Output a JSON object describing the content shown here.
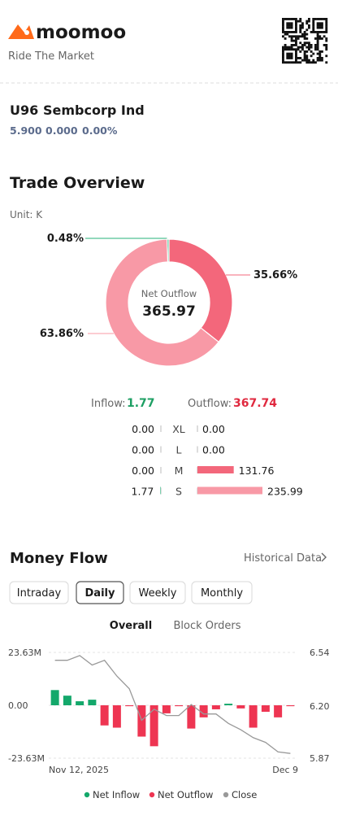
{
  "header": {
    "brand": "moomoo",
    "tagline": "Ride The Market"
  },
  "stock": {
    "symbol": "U96",
    "name": "Sembcorp Ind",
    "price": "5.900",
    "change": "0.000",
    "change_pct": "0.00%"
  },
  "trade_overview": {
    "title": "Trade Overview",
    "unit": "Unit: K",
    "donut": {
      "type": "donut",
      "values": [
        0.48,
        35.66,
        63.86
      ],
      "value_labels": [
        "0.48%",
        "35.66%",
        "63.86%"
      ],
      "colors": [
        "#25b27a",
        "#f3677b",
        "#f899a6"
      ],
      "center_label": "Net Outflow",
      "center_value": 365.97
    },
    "inflow_label": "Inflow:",
    "inflow": 1.77,
    "inflow_color": "#1d9f63",
    "outflow_label": "Outflow:",
    "outflow": 367.74,
    "outflow_color": "#e0293f",
    "rows": [
      {
        "size": "XL",
        "inflow": "0.00",
        "outflow": "0.00"
      },
      {
        "size": "L",
        "inflow": "0.00",
        "outflow": "0.00"
      },
      {
        "size": "M",
        "inflow": "0.00",
        "outflow": 131.76
      },
      {
        "size": "S",
        "inflow": 1.77,
        "outflow": 235.99
      }
    ]
  },
  "money_flow": {
    "title": "Money Flow",
    "link": "Historical Data",
    "tabs": [
      "Intraday",
      "Daily",
      "Weekly",
      "Monthly"
    ],
    "subtabs": [
      "Overall",
      "Block Orders"
    ],
    "chart": {
      "type": "bar",
      "categories": [
        "Nov 12, 2025",
        null,
        null,
        null,
        null,
        null,
        null,
        null,
        null,
        null,
        null,
        null,
        null,
        null,
        null,
        null,
        null,
        null,
        null,
        "Dec 9"
      ],
      "series": [
        {
          "name": "Net Inflow",
          "color": "#14a86b",
          "values": [
            6.8,
            4.3,
            1.8,
            2.5,
            null,
            null,
            null,
            null,
            null,
            null,
            null,
            null,
            null,
            null,
            0.7,
            null,
            null,
            null,
            null,
            null
          ]
        },
        {
          "name": "Net Outflow",
          "color": "#ee3552",
          "values": [
            null,
            null,
            null,
            null,
            -9.0,
            -10.0,
            -0.4,
            -14.0,
            -18.3,
            -3.6,
            -0.4,
            -10.4,
            -5.4,
            -1.8,
            null,
            -1.4,
            -10.0,
            -2.9,
            -5.4,
            -0.4
          ]
        },
        {
          "name": "Close",
          "color": "#999999",
          "axis": "y2",
          "values": [
            6.49,
            6.49,
            6.52,
            6.46,
            6.49,
            6.39,
            6.31,
            6.11,
            6.18,
            6.14,
            6.14,
            6.21,
            6.15,
            6.15,
            6.09,
            6.05,
            6.0,
            5.97,
            5.91,
            5.9
          ]
        }
      ],
      "ylim": [
        -23.63,
        23.63
      ],
      "yticks": [
        {
          "value": 23.63,
          "label": "23.63M"
        },
        {
          "value": 0,
          "label": "0.00"
        },
        {
          "value": -23.63,
          "label": "-23.63M"
        }
      ],
      "y2lim": [
        5.87,
        6.54
      ],
      "y2ticks": [
        6.54,
        {
          "value": 6.2,
          "label": "6.20"
        },
        5.87
      ],
      "grid": true
    }
  }
}
